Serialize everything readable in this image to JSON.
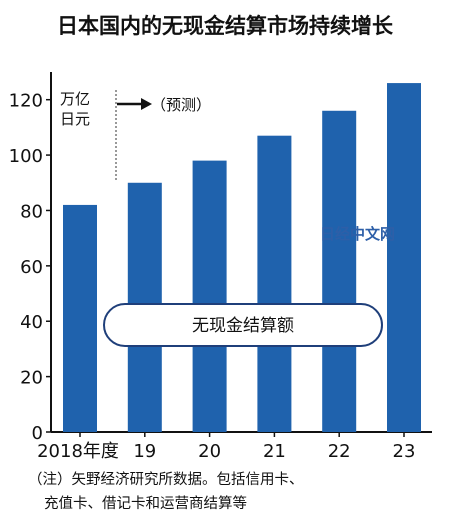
{
  "chart_data": {
    "type": "bar",
    "title": "日本国内的无现金结算市场持续增长",
    "unit_line1": "万亿",
    "unit_line2": "日元",
    "forecast_label": "（预测）",
    "legend_label": "无现金结算额",
    "categories": [
      "2018年度",
      "19",
      "20",
      "21",
      "22",
      "23"
    ],
    "values": [
      82,
      90,
      98,
      107,
      116,
      126
    ],
    "y_ticks": [
      0,
      20,
      40,
      60,
      80,
      100,
      120
    ],
    "ylim": [
      0,
      130
    ],
    "bar_color": "#1f62ad",
    "forecast_starts_after": "2018年度",
    "grid": false
  },
  "note_line1": "（注）矢野经济研究所数据。包括信用卡、",
  "note_line2": "充值卡、借记卡和运营商结算等",
  "watermark": "日经中文网"
}
